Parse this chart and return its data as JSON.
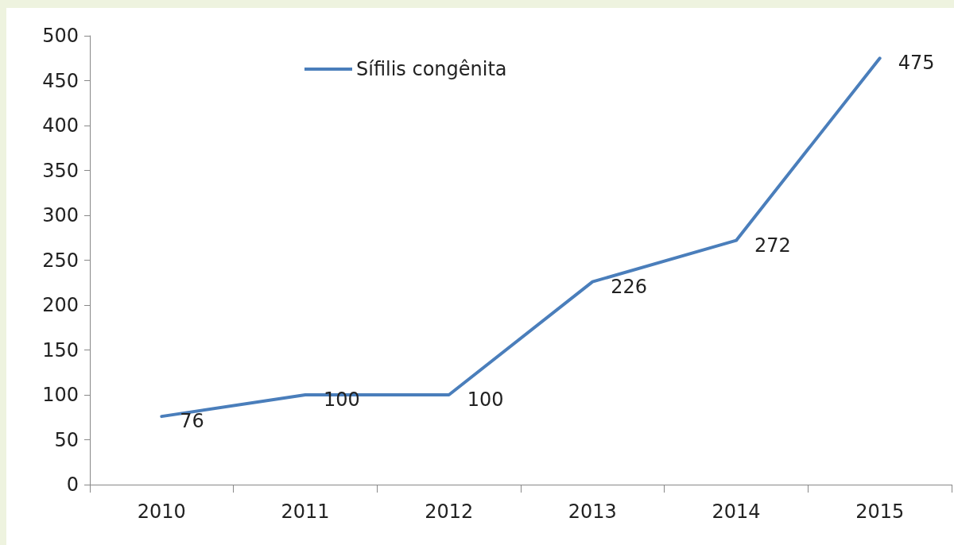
{
  "chart_data": {
    "type": "line",
    "categories": [
      "2010",
      "2011",
      "2012",
      "2013",
      "2014",
      "2015"
    ],
    "series": [
      {
        "name": "Sífilis congênita",
        "color": "#4a7ebb",
        "values": [
          76,
          100,
          100,
          226,
          272,
          475
        ]
      }
    ],
    "ylim": [
      0,
      500
    ],
    "yticks": [
      0,
      50,
      100,
      150,
      200,
      250,
      300,
      350,
      400,
      450,
      500
    ],
    "data_labels": true,
    "legend": "top left",
    "grid": false,
    "marker": "none",
    "line_style": "solid"
  }
}
